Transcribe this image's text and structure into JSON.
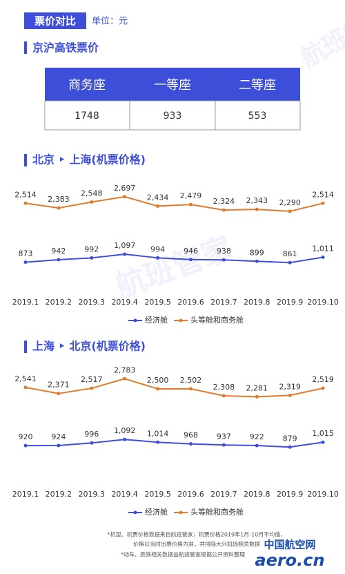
{
  "header": {
    "title": "票价对比",
    "unit": "单位：元"
  },
  "rail": {
    "title": "京沪高铁票价",
    "table": {
      "columns": [
        "商务座",
        "一等座",
        "二等座"
      ],
      "rows": [
        [
          "1748",
          "933",
          "553"
        ]
      ]
    }
  },
  "watermark": "航班管家",
  "logo": {
    "name": "中国航空网",
    "site": "aero.cn"
  },
  "chart_data": [
    {
      "type": "line",
      "title": "北京 ‣ 上海(机票价格)",
      "categories": [
        "2019.1",
        "2019.2",
        "2019.3",
        "2019.4",
        "2019.5",
        "2019.6",
        "2019.7",
        "2019.8",
        "2019.9",
        "2019.10"
      ],
      "series": [
        {
          "name": "经济舱",
          "color": "#3d4fd8",
          "values": [
            873,
            942,
            992,
            1097,
            994,
            946,
            938,
            899,
            861,
            1011
          ],
          "value_labels": [
            "873",
            "942",
            "992",
            "1,097",
            "994",
            "946",
            "938",
            "899",
            "861",
            "1,011"
          ]
        },
        {
          "name": "头等舱和商务舱",
          "color": "#e07b2c",
          "values": [
            2514,
            2383,
            2548,
            2697,
            2434,
            2479,
            2324,
            2343,
            2290,
            2514
          ],
          "value_labels": [
            "2,514",
            "2,383",
            "2,548",
            "2,697",
            "2,434",
            "2,479",
            "2,324",
            "2,343",
            "2,290",
            "2,514"
          ]
        }
      ]
    },
    {
      "type": "line",
      "title": "上海 ‣ 北京(机票价格)",
      "categories": [
        "2019.1",
        "2019.2",
        "2019.3",
        "2019.4",
        "2019.5",
        "2019.6",
        "2019.7",
        "2019.8",
        "2019.9",
        "2019.10"
      ],
      "series": [
        {
          "name": "经济舱",
          "color": "#3d4fd8",
          "values": [
            920,
            924,
            996,
            1092,
            1014,
            968,
            937,
            922,
            879,
            1015
          ],
          "value_labels": [
            "920",
            "924",
            "996",
            "1,092",
            "1,014",
            "968",
            "937",
            "922",
            "879",
            "1,015"
          ]
        },
        {
          "name": "头等舱和商务舱",
          "color": "#e07b2c",
          "values": [
            2541,
            2371,
            2517,
            2783,
            2500,
            2502,
            2308,
            2281,
            2319,
            2519
          ],
          "value_labels": [
            "2,541",
            "2,371",
            "2,517",
            "2,783",
            "2,500",
            "2,502",
            "2,308",
            "2,281",
            "2,319",
            "2,519"
          ]
        }
      ]
    }
  ],
  "notes": [
    "*机型、机票价格数据来自航班管家；机票价格2019年1月-10月平均值，",
    "价格以当时出票价格为准，并排除大兴机场相关数据",
    "*动车、高铁相关数据由航班管家根据公开资料整理"
  ]
}
